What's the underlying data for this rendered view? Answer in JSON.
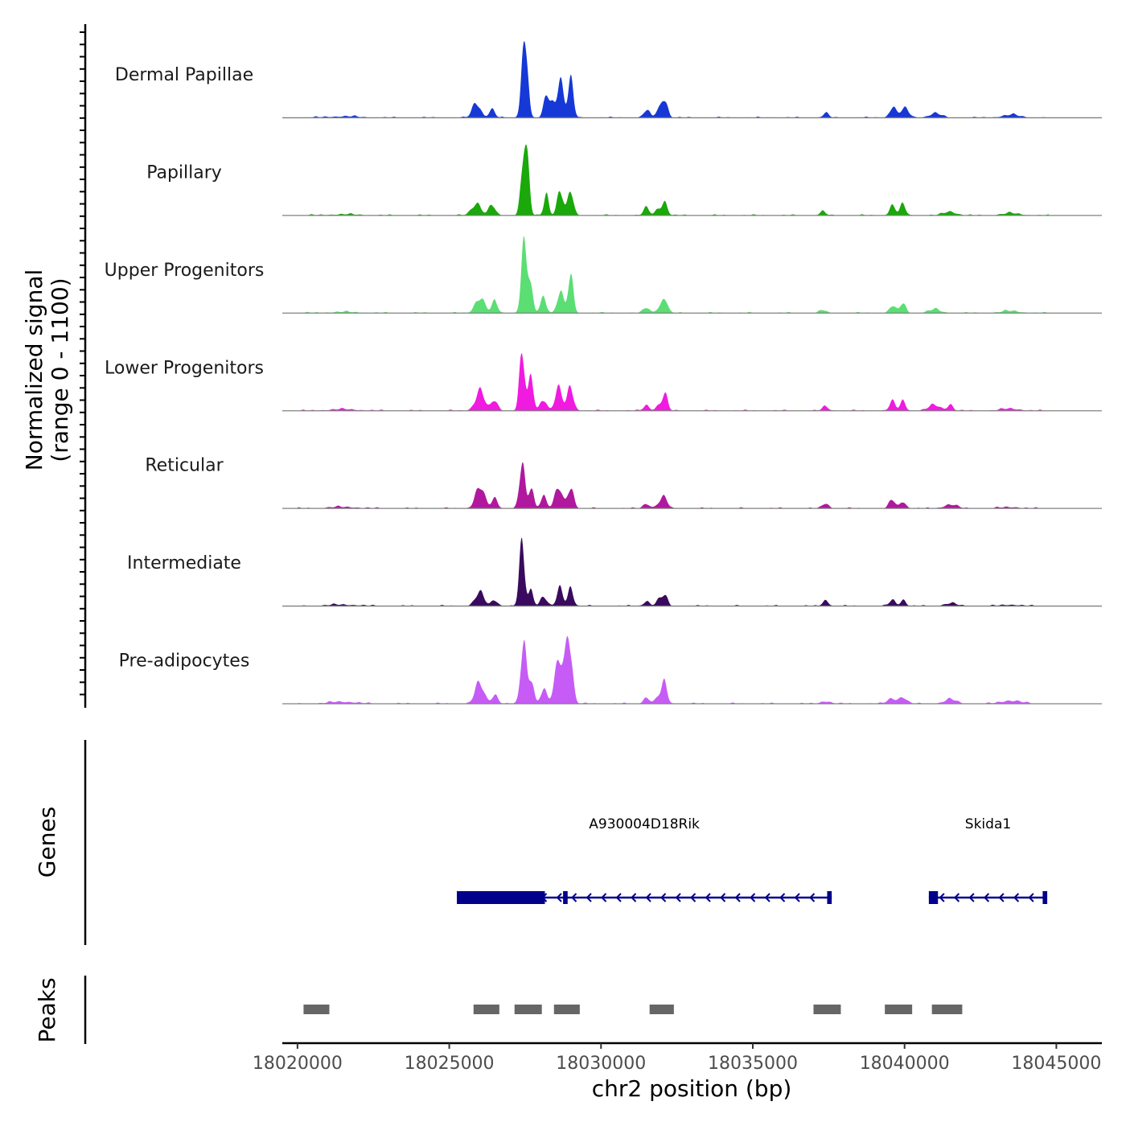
{
  "chart_data": {
    "type": "area",
    "xlabel": "chr2 position (bp)",
    "ylabel_line1": "Normalized signal",
    "ylabel_line2": "(range 0 - 1100)",
    "y_range": [
      0,
      1100
    ],
    "x_range": [
      18019500,
      18046500
    ],
    "x_ticks": [
      18020000,
      18025000,
      18030000,
      18035000,
      18040000,
      18045000
    ],
    "x_tick_labels": [
      "18020000",
      "18025000",
      "18030000",
      "18035000",
      "18040000",
      "18045000"
    ],
    "genes_track_label": "Genes",
    "peaks_track_label": "Peaks",
    "tracks": [
      {
        "name": "Dermal Papillae",
        "color": "#1638d6",
        "peaks": [
          [
            18025900,
            240,
            130
          ],
          [
            18026400,
            120,
            100
          ],
          [
            18027450,
            950,
            90
          ],
          [
            18027550,
            600,
            70
          ],
          [
            18028200,
            380,
            80
          ],
          [
            18028650,
            600,
            110
          ],
          [
            18029000,
            500,
            90
          ],
          [
            18028400,
            200,
            80
          ],
          [
            18031500,
            100,
            100
          ],
          [
            18031900,
            120,
            100
          ],
          [
            18032100,
            330,
            90
          ],
          [
            18037400,
            60,
            100
          ],
          [
            18039600,
            170,
            100
          ],
          [
            18040000,
            120,
            150
          ],
          [
            18041000,
            60,
            200
          ],
          [
            18043500,
            40,
            300
          ],
          [
            18021500,
            20,
            500
          ]
        ]
      },
      {
        "name": "Papillary",
        "color": "#1aa80b",
        "peaks": [
          [
            18025900,
            200,
            150
          ],
          [
            18026400,
            150,
            100
          ],
          [
            18027450,
            1000,
            90
          ],
          [
            18027600,
            450,
            70
          ],
          [
            18028200,
            330,
            80
          ],
          [
            18028650,
            380,
            100
          ],
          [
            18029000,
            330,
            90
          ],
          [
            18031500,
            100,
            100
          ],
          [
            18031900,
            110,
            100
          ],
          [
            18032100,
            200,
            90
          ],
          [
            18037300,
            50,
            100
          ],
          [
            18039600,
            140,
            100
          ],
          [
            18039950,
            150,
            90
          ],
          [
            18041500,
            60,
            200
          ],
          [
            18043500,
            30,
            300
          ],
          [
            18021500,
            15,
            500
          ]
        ]
      },
      {
        "name": "Upper Progenitors",
        "color": "#5bde73",
        "peaks": [
          [
            18026000,
            250,
            150
          ],
          [
            18026500,
            150,
            100
          ],
          [
            18027450,
            900,
            90
          ],
          [
            18027650,
            400,
            90
          ],
          [
            18028100,
            250,
            100
          ],
          [
            18028650,
            300,
            100
          ],
          [
            18029000,
            500,
            90
          ],
          [
            18031500,
            80,
            100
          ],
          [
            18031900,
            80,
            100
          ],
          [
            18032100,
            230,
            90
          ],
          [
            18037300,
            40,
            100
          ],
          [
            18039600,
            100,
            100
          ],
          [
            18039950,
            150,
            90
          ],
          [
            18041000,
            50,
            200
          ],
          [
            18043500,
            30,
            300
          ],
          [
            18021500,
            15,
            500
          ]
        ]
      },
      {
        "name": "Lower Progenitors",
        "color": "#f01ae0",
        "peaks": [
          [
            18026000,
            300,
            150
          ],
          [
            18026500,
            150,
            100
          ],
          [
            18027400,
            780,
            90
          ],
          [
            18027700,
            480,
            80
          ],
          [
            18028100,
            200,
            100
          ],
          [
            18028600,
            300,
            120
          ],
          [
            18029000,
            350,
            100
          ],
          [
            18031500,
            80,
            100
          ],
          [
            18031900,
            80,
            100
          ],
          [
            18032100,
            230,
            90
          ],
          [
            18037400,
            60,
            100
          ],
          [
            18039600,
            120,
            100
          ],
          [
            18039950,
            150,
            90
          ],
          [
            18041000,
            80,
            200
          ],
          [
            18041500,
            100,
            90
          ],
          [
            18043500,
            30,
            300
          ],
          [
            18021500,
            20,
            500
          ]
        ]
      },
      {
        "name": "Reticular",
        "color": "#b0189e",
        "peaks": [
          [
            18026000,
            300,
            150
          ],
          [
            18026500,
            150,
            100
          ],
          [
            18027400,
            600,
            90
          ],
          [
            18027700,
            330,
            80
          ],
          [
            18028100,
            200,
            100
          ],
          [
            18028600,
            280,
            120
          ],
          [
            18029000,
            340,
            100
          ],
          [
            18031500,
            80,
            100
          ],
          [
            18031900,
            80,
            100
          ],
          [
            18032100,
            150,
            90
          ],
          [
            18037400,
            80,
            100
          ],
          [
            18039600,
            120,
            100
          ],
          [
            18039950,
            120,
            90
          ],
          [
            18041500,
            60,
            200
          ],
          [
            18043500,
            20,
            300
          ],
          [
            18021500,
            20,
            500
          ]
        ]
      },
      {
        "name": "Intermediate",
        "color": "#3a0a5e",
        "peaks": [
          [
            18026000,
            180,
            150
          ],
          [
            18026500,
            100,
            100
          ],
          [
            18027400,
            850,
            90
          ],
          [
            18027700,
            250,
            80
          ],
          [
            18028100,
            150,
            100
          ],
          [
            18028650,
            250,
            100
          ],
          [
            18029000,
            300,
            90
          ],
          [
            18031500,
            80,
            100
          ],
          [
            18031900,
            80,
            100
          ],
          [
            18032100,
            140,
            90
          ],
          [
            18037400,
            90,
            100
          ],
          [
            18039600,
            90,
            100
          ],
          [
            18039950,
            100,
            90
          ],
          [
            18041500,
            40,
            200
          ],
          [
            18043500,
            20,
            300
          ],
          [
            18021500,
            20,
            500
          ]
        ]
      },
      {
        "name": "Pre-adipocytes",
        "color": "#c65cf5",
        "peaks": [
          [
            18026000,
            280,
            150
          ],
          [
            18026500,
            150,
            100
          ],
          [
            18027450,
            980,
            90
          ],
          [
            18027700,
            450,
            80
          ],
          [
            18028100,
            200,
            100
          ],
          [
            18028650,
            700,
            150
          ],
          [
            18028950,
            1100,
            100
          ],
          [
            18031500,
            100,
            100
          ],
          [
            18031900,
            100,
            100
          ],
          [
            18032100,
            280,
            90
          ],
          [
            18037400,
            40,
            150
          ],
          [
            18039600,
            80,
            150
          ],
          [
            18039950,
            100,
            120
          ],
          [
            18041500,
            60,
            200
          ],
          [
            18043500,
            50,
            300
          ],
          [
            18021500,
            30,
            400
          ]
        ]
      }
    ],
    "genes": [
      {
        "name": "A930004D18Rik",
        "start": 18025250,
        "end": 18037600,
        "strand": "-",
        "color": "#00008b",
        "exons": [
          [
            18025250,
            18028150
          ],
          [
            18028750,
            18028900
          ],
          [
            18037450,
            18037600
          ]
        ]
      },
      {
        "name": "Skida1",
        "start": 18040800,
        "end": 18044700,
        "strand": "-",
        "color": "#00008b",
        "exons": [
          [
            18040800,
            18041100
          ],
          [
            18044550,
            18044700
          ]
        ]
      }
    ],
    "peak_regions": [
      [
        18020200,
        18021050
      ],
      [
        18025800,
        18026650
      ],
      [
        18027150,
        18028050
      ],
      [
        18028450,
        18029300
      ],
      [
        18031600,
        18032400
      ],
      [
        18037000,
        18037900
      ],
      [
        18039350,
        18040250
      ],
      [
        18040900,
        18041900
      ]
    ],
    "peak_color": "#666666"
  }
}
